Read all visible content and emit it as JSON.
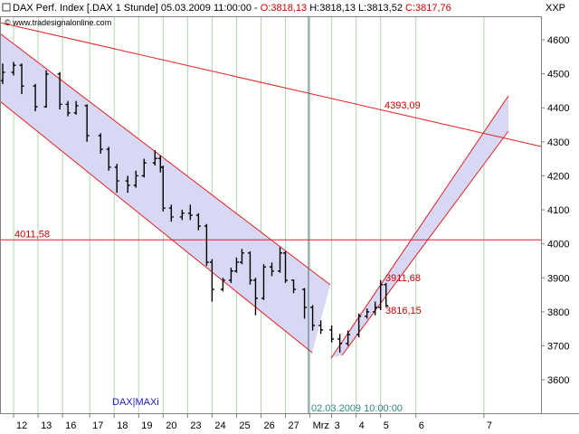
{
  "chart_data": {
    "type": "ohlc",
    "title": "DAX Perf. Index [.DAX  1 Stunde] 05.03.2009 11:00:00 -",
    "title_open": "O:3818,13",
    "title_hl": "H:3818,13 L:3813,52",
    "title_close": "C:3817,76",
    "source": "© www.tradesignalonline.com",
    "corner_label": "XXP",
    "watermark": "DAX|MAXi",
    "marker_label": "02.03.2009 10:00:00",
    "color": "#000000",
    "x": [
      1,
      5,
      8,
      13,
      17,
      22,
      25,
      28,
      32,
      37,
      40,
      43,
      47,
      50,
      53,
      57,
      59,
      60,
      63,
      67,
      70,
      73,
      76,
      78,
      82,
      85,
      87,
      89,
      92,
      94,
      97,
      100,
      103,
      105,
      108,
      112,
      115,
      118,
      122,
      125,
      128,
      132,
      135,
      138,
      140,
      142
    ],
    "open": [
      4480,
      4504,
      4525,
      4464,
      4403,
      4499,
      4410,
      4385,
      4406,
      4318,
      4278,
      4225,
      4185,
      4172,
      4200,
      4238,
      4251,
      4225,
      4105,
      4079,
      4090,
      4084,
      4052,
      3946,
      3866,
      3893,
      3920,
      3946,
      3973,
      3893,
      3840,
      3932,
      3920,
      3973,
      3893,
      3866,
      3813,
      3760,
      3747,
      3720,
      3707,
      3733,
      3787,
      3800,
      3813,
      3880
    ],
    "high": [
      4530,
      4535,
      4530,
      4470,
      4510,
      4505,
      4420,
      4420,
      4410,
      4325,
      4285,
      4235,
      4200,
      4215,
      4250,
      4275,
      4260,
      4230,
      4115,
      4100,
      4115,
      4090,
      4058,
      3955,
      3900,
      3930,
      3960,
      3985,
      3978,
      3900,
      3940,
      3945,
      3990,
      3978,
      3895,
      3870,
      3820,
      3775,
      3760,
      3735,
      3745,
      3795,
      3810,
      3830,
      3893,
      3885
    ],
    "low": [
      4470,
      4495,
      4440,
      4390,
      4400,
      4395,
      4375,
      4380,
      4300,
      4265,
      4215,
      4150,
      4150,
      4165,
      4195,
      4230,
      4210,
      4095,
      4065,
      4070,
      4070,
      4040,
      3935,
      3830,
      3860,
      3885,
      3915,
      3940,
      3880,
      3790,
      3835,
      3905,
      3915,
      3885,
      3855,
      3780,
      3745,
      3735,
      3710,
      3680,
      3700,
      3725,
      3780,
      3790,
      3805,
      3814
    ],
    "close": [
      4504,
      4525,
      4464,
      4403,
      4499,
      4410,
      4385,
      4406,
      4318,
      4278,
      4225,
      4185,
      4172,
      4200,
      4238,
      4251,
      4225,
      4105,
      4079,
      4090,
      4084,
      4052,
      3946,
      3866,
      3893,
      3920,
      3946,
      3973,
      3893,
      3840,
      3932,
      3920,
      3973,
      3893,
      3866,
      3813,
      3760,
      3747,
      3720,
      3707,
      3733,
      3787,
      3800,
      3813,
      3880,
      3818
    ],
    "xlim": [
      0,
      199
    ],
    "ylim": [
      3502,
      4669
    ],
    "xticks": [
      {
        "value": 5,
        "label": "12"
      },
      {
        "value": 14,
        "label": "13"
      },
      {
        "value": 23,
        "label": "16"
      },
      {
        "value": 33,
        "label": "17"
      },
      {
        "value": 42,
        "label": "18"
      },
      {
        "value": 51,
        "label": "19"
      },
      {
        "value": 60,
        "label": "20"
      },
      {
        "value": 69,
        "label": "23"
      },
      {
        "value": 78,
        "label": "24"
      },
      {
        "value": 87,
        "label": "25"
      },
      {
        "value": 96,
        "label": "26"
      },
      {
        "value": 105,
        "label": "27"
      },
      {
        "value": 114,
        "label": "Mrz"
      },
      {
        "value": 122,
        "label": "3"
      },
      {
        "value": 131,
        "label": "4"
      },
      {
        "value": 140,
        "label": "5"
      },
      {
        "value": 153,
        "label": "6"
      },
      {
        "value": 178,
        "label": "7"
      }
    ],
    "yticks": [
      3600,
      3700,
      3800,
      3900,
      4000,
      4100,
      4200,
      4300,
      4400,
      4500,
      4600
    ],
    "grid": true,
    "level": {
      "value": 4011.58,
      "label": "4011,58"
    },
    "annotations": [
      {
        "value": 4393.09,
        "label": "4393,09"
      },
      {
        "value": 3911.68,
        "label": "3911,68"
      },
      {
        "value": 3816.15,
        "label": "3816,15"
      }
    ]
  }
}
